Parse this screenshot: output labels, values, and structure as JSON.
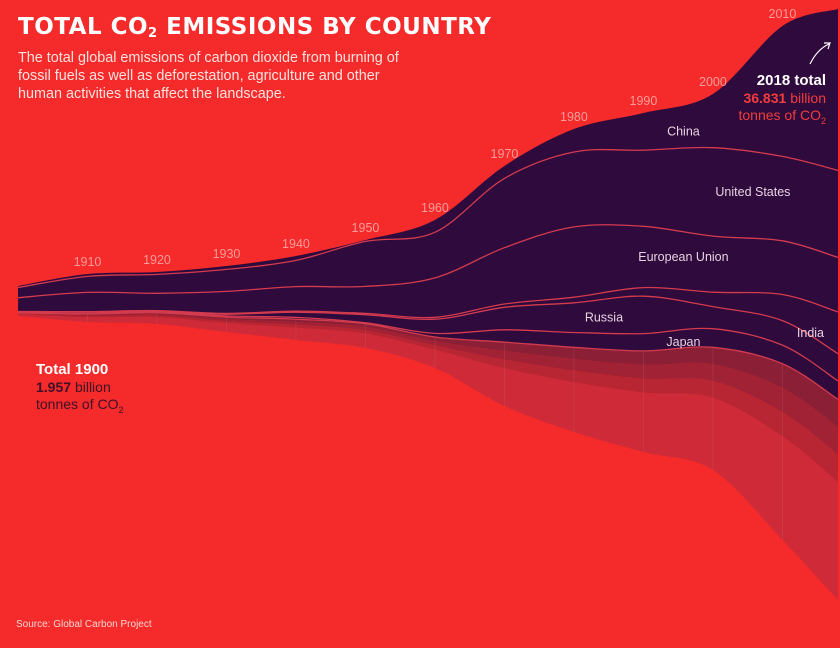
{
  "header": {
    "title_main": "TOTAL CO",
    "title_sub": "2",
    "title_rest": " EMISSIONS BY COUNTRY",
    "subtitle": "The total global emissions of carbon dioxide from burning of fossil fuels as well as deforestation, agriculture and other human activities that affect the landscape."
  },
  "callout_1900": {
    "label": "Total 1900",
    "value": "1.957",
    "unit": "billion",
    "line2": "tonnes of CO",
    "line2_sub": "2"
  },
  "callout_2018": {
    "label": "2018 total",
    "value": "36.831",
    "unit": "billion",
    "line2": "tonnes of CO",
    "line2_sub": "2"
  },
  "source": "Source: Global Carbon Project",
  "colors": {
    "background": "#f52a2a",
    "stream_dark": "#2e0a3d",
    "divider": "#d43b4e",
    "year_lines": "#c97b8b"
  },
  "chart_data": {
    "type": "area",
    "title": "TOTAL CO2 EMISSIONS BY COUNTRY",
    "unit": "billion tonnes of CO2",
    "x": [
      1900,
      1910,
      1920,
      1930,
      1940,
      1950,
      1960,
      1970,
      1980,
      1990,
      2000,
      2010,
      2018
    ],
    "year_labels": [
      "1910",
      "1920",
      "1930",
      "1940",
      "1950",
      "1960",
      "1970",
      "1980",
      "1990",
      "2000",
      "2010"
    ],
    "totals": [
      1.957,
      3.0,
      3.3,
      3.9,
      4.8,
      6.0,
      9.4,
      14.9,
      19.4,
      22.7,
      25.5,
      33.5,
      36.831
    ],
    "series": [
      {
        "name": "China",
        "values": [
          0.1,
          0.15,
          0.15,
          0.2,
          0.25,
          0.08,
          0.78,
          0.77,
          1.47,
          2.49,
          3.64,
          8.5,
          10.06
        ],
        "color": "#2e0a3d"
      },
      {
        "name": "United States",
        "values": [
          0.66,
          1.0,
          1.2,
          1.3,
          1.5,
          2.5,
          2.9,
          4.3,
          4.8,
          5.1,
          6.0,
          5.5,
          5.42
        ],
        "color": "#2e0a3d"
      },
      {
        "name": "European Union",
        "values": [
          0.9,
          1.2,
          1.1,
          1.3,
          1.4,
          1.5,
          2.5,
          3.5,
          4.5,
          4.1,
          3.8,
          3.5,
          3.4
        ],
        "color": "#2e0a3d"
      },
      {
        "name": "India",
        "values": [
          0.02,
          0.03,
          0.04,
          0.05,
          0.06,
          0.07,
          0.12,
          0.2,
          0.36,
          0.58,
          0.98,
          1.7,
          2.6
        ],
        "color": "#2e0a3d"
      },
      {
        "name": "Russia",
        "values": [
          0.05,
          0.08,
          0.05,
          0.1,
          0.3,
          0.45,
          0.9,
          1.4,
          1.9,
          2.5,
          1.5,
          1.6,
          1.7
        ],
        "color": "#2e0a3d"
      },
      {
        "name": "Japan",
        "values": [
          0.02,
          0.04,
          0.05,
          0.07,
          0.1,
          0.05,
          0.23,
          0.76,
          0.95,
          1.16,
          1.26,
          1.21,
          1.15
        ],
        "color": "#2e0a3d"
      },
      {
        "name": "",
        "values": [
          0.2,
          0.5,
          0.71,
          0.88,
          1.19,
          1.35,
          1.97,
          3.97,
          5.42,
          6.77,
          8.32,
          11.49,
          12.5
        ],
        "color": "#cf2a38"
      }
    ]
  }
}
